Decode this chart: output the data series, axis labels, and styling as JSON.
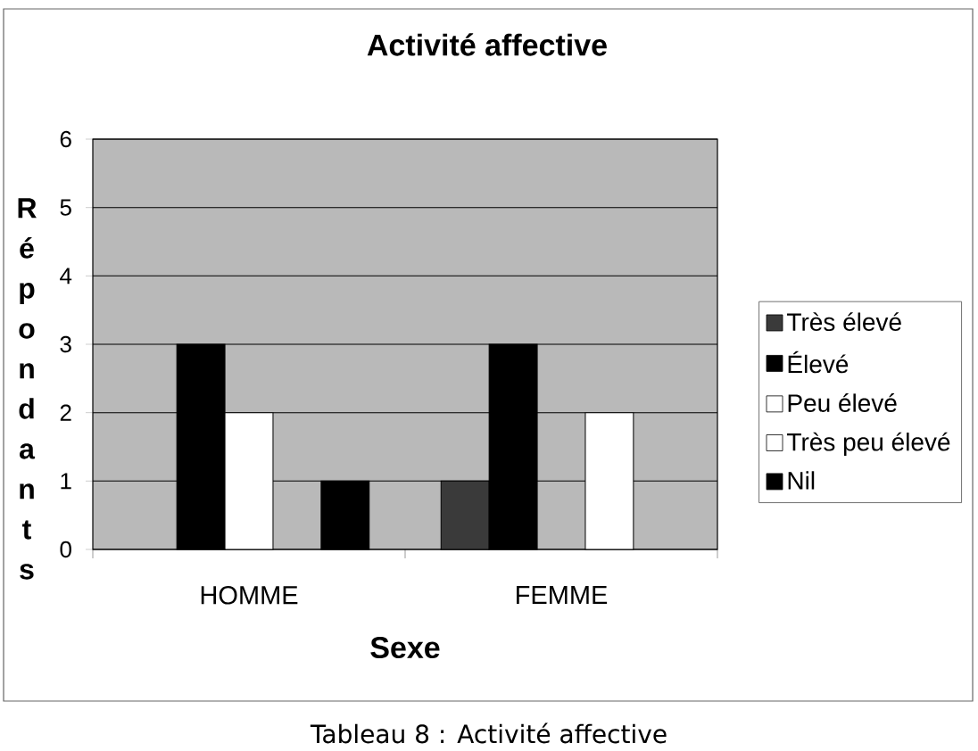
{
  "chart_data": {
    "type": "bar",
    "title": "Activité affective",
    "xlabel": "Sexe",
    "ylabel": "Répondants",
    "categories": [
      "HOMME",
      "FEMME"
    ],
    "series": [
      {
        "name": "Très élevé",
        "color": "#3a3a3a",
        "values": [
          0,
          1
        ]
      },
      {
        "name": "Élevé",
        "color": "#000000",
        "values": [
          3,
          3
        ]
      },
      {
        "name": "Peu élevé",
        "color": "#ffffff",
        "values": [
          2,
          0
        ]
      },
      {
        "name": "Très peu élevé",
        "color": "#ffffff",
        "values": [
          0,
          2
        ]
      },
      {
        "name": "Nil",
        "color": "#000000",
        "values": [
          1,
          0
        ]
      }
    ],
    "ylim": [
      0,
      6
    ],
    "yticks": [
      0,
      1,
      2,
      3,
      4,
      5,
      6
    ],
    "grid": "y",
    "legend": "right",
    "annotations": [
      "Tableau 8 : Activité affective"
    ]
  }
}
